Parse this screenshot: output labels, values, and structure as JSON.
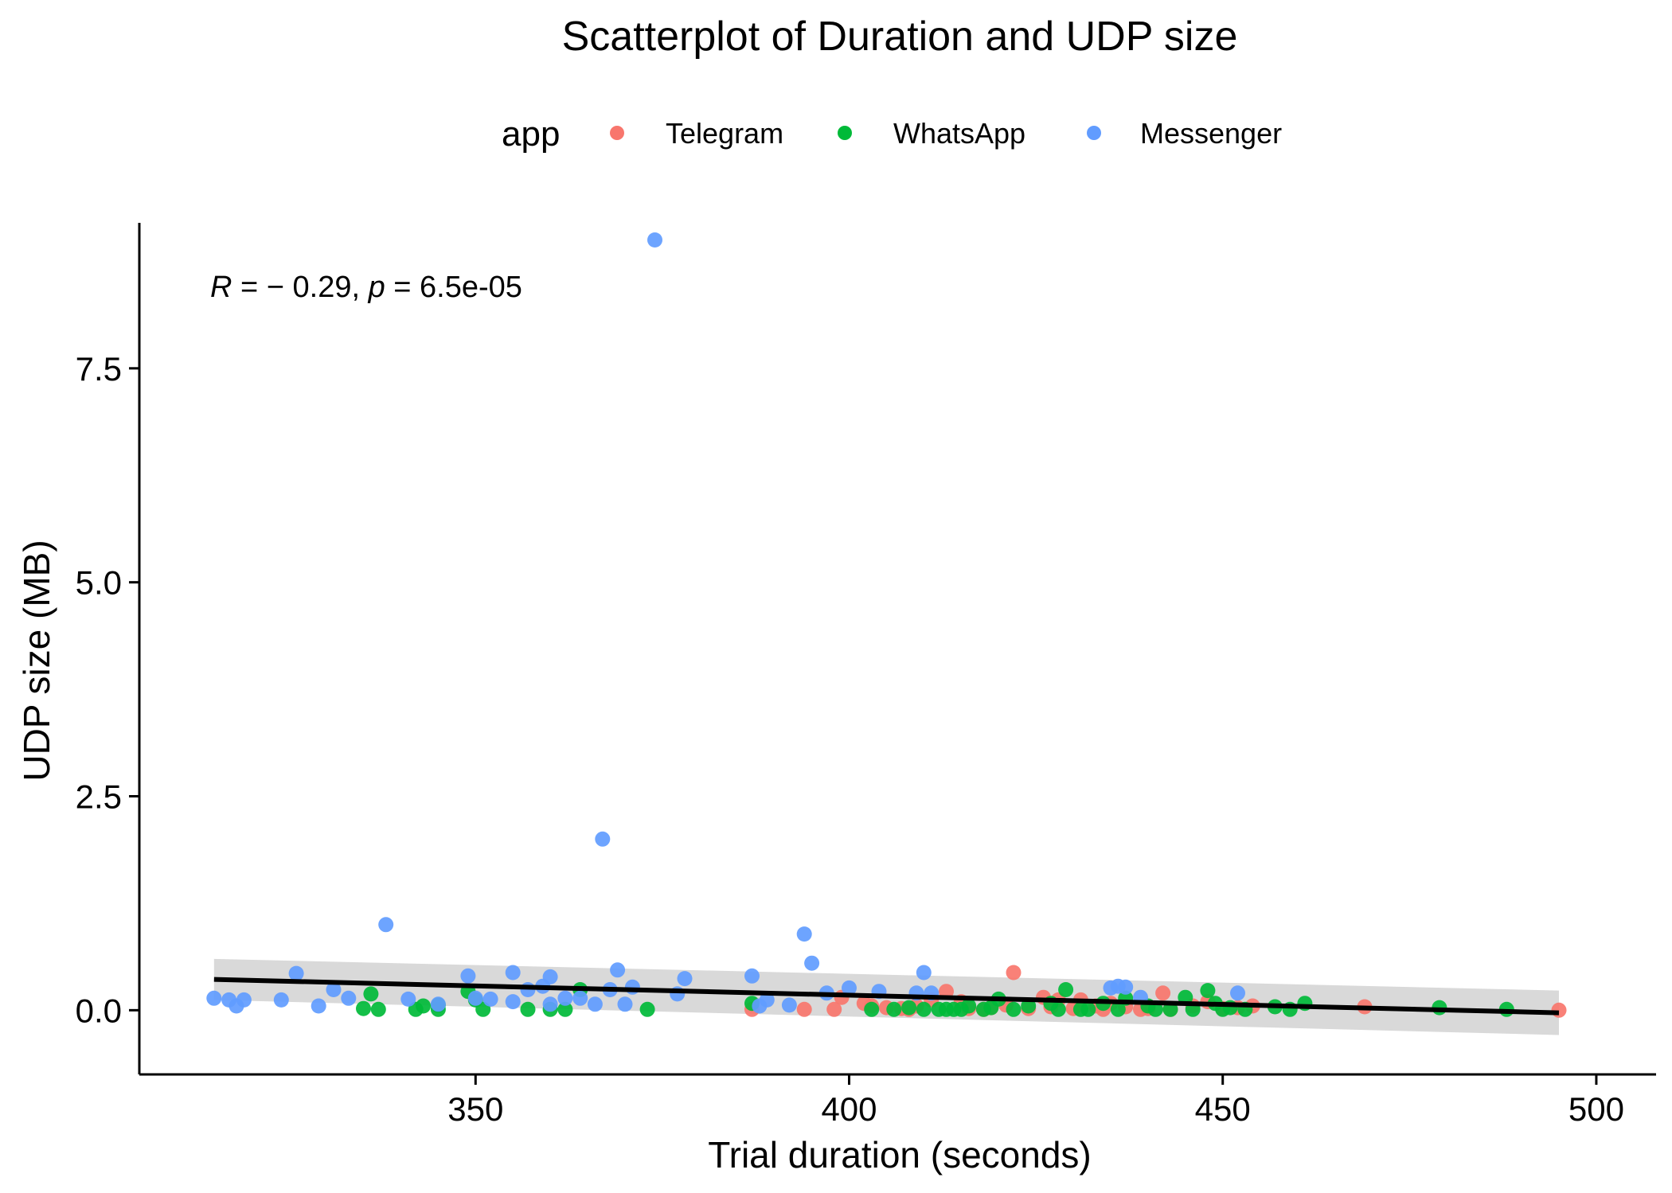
{
  "chart_data": {
    "type": "scatter",
    "title": "Scatterplot of Duration and UDP size",
    "xlabel": "Trial duration (seconds)",
    "ylabel": "UDP size (MB)",
    "xlim": [
      305,
      508
    ],
    "ylim": [
      -0.75,
      9.2
    ],
    "x_ticks": [
      350,
      400,
      450,
      500
    ],
    "x_tick_labels": [
      "350",
      "400",
      "450",
      "500"
    ],
    "y_ticks": [
      0,
      2.5,
      5,
      7.5
    ],
    "y_tick_labels": [
      "0.0",
      "2.5",
      "5.0",
      "7.5"
    ],
    "grid": false,
    "legend": {
      "title": "app",
      "position": "top",
      "entries": [
        {
          "name": "Telegram",
          "color": "#F8766D"
        },
        {
          "name": "WhatsApp",
          "color": "#00BA38"
        },
        {
          "name": "Messenger",
          "color": "#619CFF"
        }
      ]
    },
    "annotation": {
      "r_symbol": "R",
      "r_text": " = − 0.29, ",
      "p_symbol": "p",
      "p_text": " = 6.5e-05"
    },
    "series": [
      {
        "name": "Telegram",
        "color": "#F8766D",
        "points": [
          [
            387,
            0.01
          ],
          [
            394,
            0.01
          ],
          [
            398,
            0.01
          ],
          [
            399,
            0.15
          ],
          [
            402,
            0.08
          ],
          [
            403,
            0.05
          ],
          [
            405,
            0.03
          ],
          [
            407,
            0.02
          ],
          [
            408,
            0.01
          ],
          [
            409,
            0.05
          ],
          [
            411,
            0.12
          ],
          [
            413,
            0.22
          ],
          [
            415,
            0.1
          ],
          [
            416,
            0.02
          ],
          [
            418,
            0.01
          ],
          [
            419,
            0.03
          ],
          [
            421,
            0.06
          ],
          [
            422,
            0.44
          ],
          [
            424,
            0.02
          ],
          [
            426,
            0.15
          ],
          [
            427,
            0.04
          ],
          [
            428,
            0.12
          ],
          [
            430,
            0.02
          ],
          [
            431,
            0.12
          ],
          [
            433,
            0.05
          ],
          [
            434,
            0.01
          ],
          [
            435,
            0.08
          ],
          [
            437,
            0.04
          ],
          [
            439,
            0.01
          ],
          [
            440,
            0.02
          ],
          [
            442,
            0.2
          ],
          [
            443,
            0.01
          ],
          [
            446,
            0.05
          ],
          [
            448,
            0.1
          ],
          [
            450,
            0.02
          ],
          [
            452,
            0.03
          ],
          [
            454,
            0.05
          ],
          [
            469,
            0.04
          ],
          [
            495,
            0.0
          ]
        ]
      },
      {
        "name": "WhatsApp",
        "color": "#00BA38",
        "points": [
          [
            335,
            0.02
          ],
          [
            336,
            0.19
          ],
          [
            337,
            0.01
          ],
          [
            342,
            0.01
          ],
          [
            343,
            0.05
          ],
          [
            345,
            0.01
          ],
          [
            345,
            0.06
          ],
          [
            349,
            0.22
          ],
          [
            350,
            0.12
          ],
          [
            351,
            0.01
          ],
          [
            357,
            0.01
          ],
          [
            360,
            0.01
          ],
          [
            362,
            0.01
          ],
          [
            364,
            0.24
          ],
          [
            373,
            0.01
          ],
          [
            387,
            0.08
          ],
          [
            403,
            0.01
          ],
          [
            406,
            0.01
          ],
          [
            408,
            0.03
          ],
          [
            410,
            0.01
          ],
          [
            412,
            0.01
          ],
          [
            413,
            0.01
          ],
          [
            414,
            0.01
          ],
          [
            415,
            0.01
          ],
          [
            416,
            0.05
          ],
          [
            418,
            0.01
          ],
          [
            419,
            0.03
          ],
          [
            420,
            0.13
          ],
          [
            422,
            0.01
          ],
          [
            424,
            0.05
          ],
          [
            427,
            0.08
          ],
          [
            428,
            0.01
          ],
          [
            429,
            0.24
          ],
          [
            431,
            0.01
          ],
          [
            432,
            0.01
          ],
          [
            434,
            0.08
          ],
          [
            436,
            0.01
          ],
          [
            437,
            0.14
          ],
          [
            440,
            0.05
          ],
          [
            441,
            0.01
          ],
          [
            443,
            0.01
          ],
          [
            445,
            0.15
          ],
          [
            446,
            0.01
          ],
          [
            448,
            0.23
          ],
          [
            449,
            0.08
          ],
          [
            450,
            0.01
          ],
          [
            451,
            0.03
          ],
          [
            453,
            0.01
          ],
          [
            457,
            0.04
          ],
          [
            459,
            0.01
          ],
          [
            461,
            0.08
          ],
          [
            479,
            0.03
          ],
          [
            488,
            0.01
          ]
        ]
      },
      {
        "name": "Messenger",
        "color": "#619CFF",
        "points": [
          [
            315,
            0.14
          ],
          [
            317,
            0.12
          ],
          [
            318,
            0.05
          ],
          [
            319,
            0.12
          ],
          [
            324,
            0.12
          ],
          [
            326,
            0.43
          ],
          [
            329,
            0.05
          ],
          [
            331,
            0.24
          ],
          [
            333,
            0.14
          ],
          [
            338,
            1.0
          ],
          [
            341,
            0.13
          ],
          [
            345,
            0.07
          ],
          [
            349,
            0.4
          ],
          [
            350,
            0.14
          ],
          [
            352,
            0.13
          ],
          [
            355,
            0.1
          ],
          [
            355,
            0.44
          ],
          [
            357,
            0.24
          ],
          [
            359,
            0.28
          ],
          [
            360,
            0.39
          ],
          [
            360,
            0.07
          ],
          [
            362,
            0.14
          ],
          [
            364,
            0.14
          ],
          [
            366,
            0.07
          ],
          [
            367,
            2.0
          ],
          [
            368,
            0.24
          ],
          [
            369,
            0.47
          ],
          [
            370,
            0.07
          ],
          [
            371,
            0.27
          ],
          [
            374,
            9.0
          ],
          [
            377,
            0.19
          ],
          [
            378,
            0.37
          ],
          [
            387,
            0.4
          ],
          [
            388,
            0.05
          ],
          [
            389,
            0.12
          ],
          [
            392,
            0.06
          ],
          [
            394,
            0.89
          ],
          [
            395,
            0.55
          ],
          [
            397,
            0.2
          ],
          [
            400,
            0.26
          ],
          [
            404,
            0.22
          ],
          [
            409,
            0.2
          ],
          [
            410,
            0.44
          ],
          [
            411,
            0.2
          ],
          [
            435,
            0.26
          ],
          [
            436,
            0.28
          ],
          [
            437,
            0.27
          ],
          [
            439,
            0.15
          ],
          [
            452,
            0.2
          ]
        ]
      }
    ],
    "fit_line": {
      "x": [
        315,
        495
      ],
      "y": [
        0.36,
        -0.03
      ],
      "ci_lower": [
        0.12,
        -0.29
      ],
      "ci_upper": [
        0.6,
        0.23
      ],
      "color": "#000000",
      "ci_color": "#d9d9d9"
    }
  }
}
